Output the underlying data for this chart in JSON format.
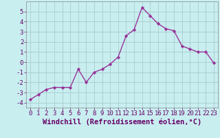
{
  "x": [
    0,
    1,
    2,
    3,
    4,
    5,
    6,
    7,
    8,
    9,
    10,
    11,
    12,
    13,
    14,
    15,
    16,
    17,
    18,
    19,
    20,
    21,
    22,
    23
  ],
  "y": [
    -3.7,
    -3.2,
    -2.7,
    -2.5,
    -2.5,
    -2.5,
    -0.7,
    -2.0,
    -1.0,
    -0.7,
    -0.2,
    0.5,
    2.6,
    3.2,
    5.4,
    4.6,
    3.8,
    3.3,
    3.1,
    1.6,
    1.3,
    1.0,
    1.0,
    -0.1
  ],
  "line_color": "#993399",
  "marker": "D",
  "marker_size": 2.2,
  "bg_color": "#c8eef0",
  "grid_color": "#aacccc",
  "xlabel": "Windchill (Refroidissement éolien,°C)",
  "xlim": [
    -0.5,
    23.5
  ],
  "ylim": [
    -4.5,
    6.0
  ],
  "yticks": [
    -4,
    -3,
    -2,
    -1,
    0,
    1,
    2,
    3,
    4,
    5
  ],
  "xticks": [
    0,
    1,
    2,
    3,
    4,
    5,
    6,
    7,
    8,
    9,
    10,
    11,
    12,
    13,
    14,
    15,
    16,
    17,
    18,
    19,
    20,
    21,
    22,
    23
  ],
  "tick_label_fontsize": 6.5,
  "xlabel_fontsize": 7.5
}
